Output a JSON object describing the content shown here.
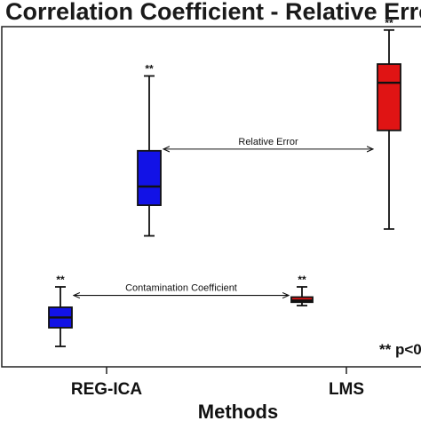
{
  "chart_data": {
    "type": "box",
    "title": "Correlation Coefficient - Relative Erro",
    "xlabel": "Methods",
    "ylabel": "",
    "categories": [
      "REG-ICA",
      "LMS"
    ],
    "ylim": [
      0,
      1
    ],
    "groups": [
      {
        "key": "relative_error",
        "annotation": "Relative Error",
        "colors": {
          "REG-ICA": "#1212e6",
          "LMS": "#e01414"
        },
        "boxes": [
          {
            "category": "REG-ICA",
            "min": 0.385,
            "q1": 0.475,
            "median": 0.53,
            "q3": 0.635,
            "max": 0.855,
            "sig": "**"
          },
          {
            "category": "LMS",
            "min": 0.405,
            "q1": 0.695,
            "median": 0.835,
            "q3": 0.89,
            "max": 0.99,
            "sig": "**"
          }
        ]
      },
      {
        "key": "contamination_coefficient",
        "annotation": "Contamination Coefficient",
        "colors": {
          "REG-ICA": "#1212e6",
          "LMS": "#e01414"
        },
        "boxes": [
          {
            "category": "REG-ICA",
            "min": 0.06,
            "q1": 0.115,
            "median": 0.145,
            "q3": 0.175,
            "max": 0.235,
            "sig": "**"
          },
          {
            "category": "LMS",
            "min": 0.18,
            "q1": 0.19,
            "median": 0.195,
            "q3": 0.205,
            "max": 0.235,
            "sig": "**"
          }
        ]
      }
    ],
    "footnote": "** p<0"
  }
}
